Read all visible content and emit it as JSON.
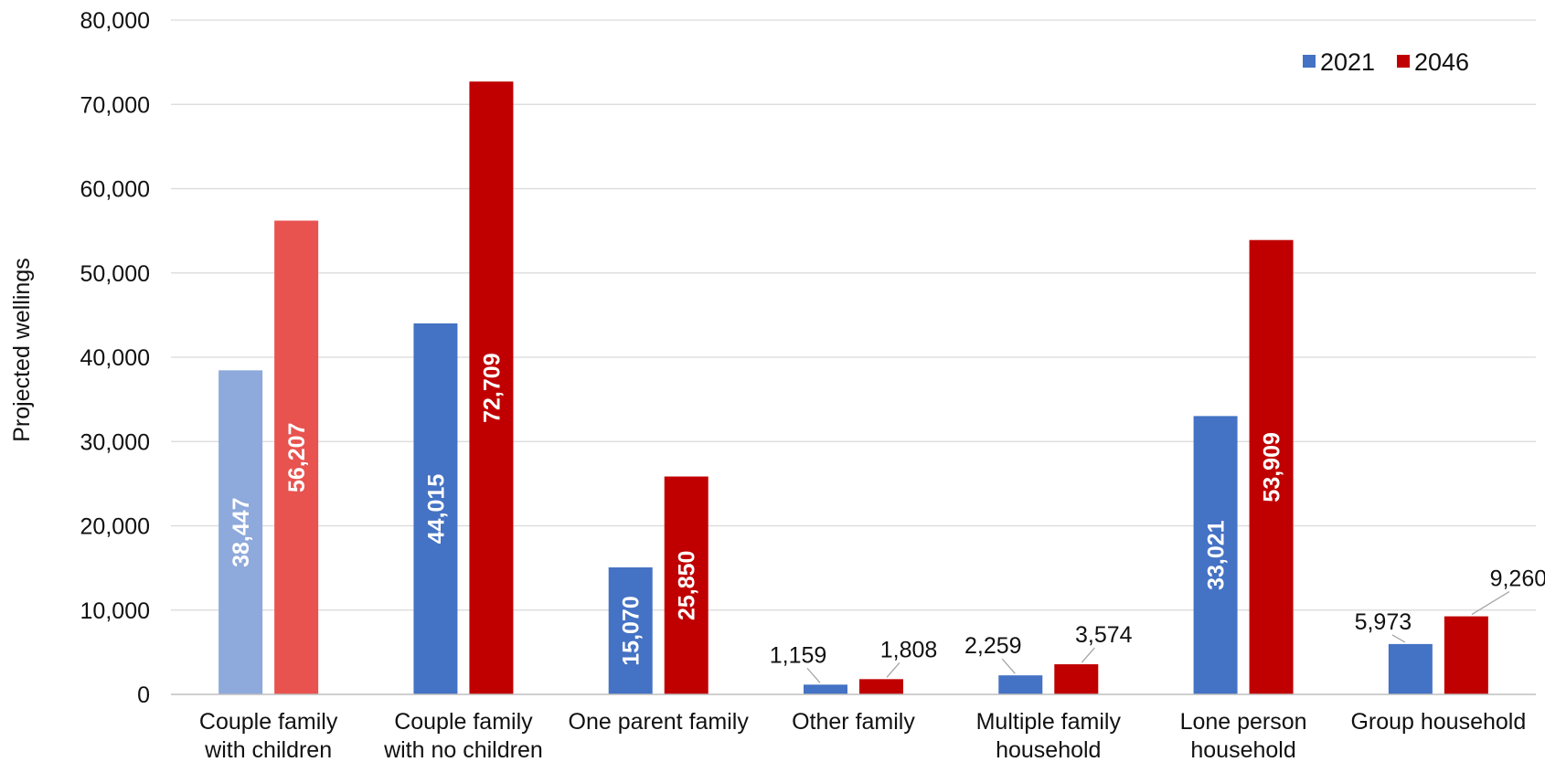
{
  "chart_data": {
    "type": "bar",
    "title": "",
    "xlabel": "",
    "ylabel": "Projected wellings",
    "ylim": [
      0,
      80000
    ],
    "yticks": [
      0,
      10000,
      20000,
      30000,
      40000,
      50000,
      60000,
      70000,
      80000
    ],
    "ytick_labels": [
      "0",
      "10,000",
      "20,000",
      "30,000",
      "40,000",
      "50,000",
      "60,000",
      "70,000",
      "80,000"
    ],
    "grid": true,
    "legend_position": "top-right",
    "categories": [
      [
        "Couple family",
        "with children"
      ],
      [
        "Couple family",
        "with no children"
      ],
      [
        "One parent family"
      ],
      [
        "Other family"
      ],
      [
        "Multiple family",
        "household"
      ],
      [
        "Lone person",
        "household"
      ],
      [
        "Group household"
      ]
    ],
    "series": [
      {
        "name": "2021",
        "color": "#4472C4",
        "values": [
          38447,
          44015,
          15070,
          1159,
          2259,
          33021,
          5973
        ],
        "labels": [
          "38,447",
          "44,015",
          "15,070",
          "1,159",
          "2,259",
          "33,021",
          "5,973"
        ]
      },
      {
        "name": "2046",
        "color": "#C00000",
        "values": [
          56207,
          72709,
          25850,
          1808,
          3574,
          53909,
          9260
        ],
        "labels": [
          "56,207",
          "72,709",
          "25,850",
          "1,808",
          "3,574",
          "53,909",
          "9,260"
        ]
      }
    ],
    "highlight_colors": [
      "#8EA9DB",
      "#E8524F"
    ]
  }
}
